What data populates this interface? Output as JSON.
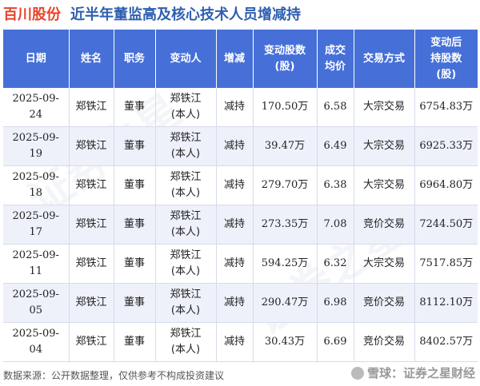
{
  "title": {
    "company": "百川股份",
    "subtitle": "近半年董监高及核心技术人员增减持"
  },
  "table": {
    "headers": [
      "日期",
      "姓名",
      "职务",
      "变动人",
      "增减",
      "变动股数\n(股)",
      "成交\n均价",
      "交易方式",
      "变动后\n持股数\n(股)"
    ],
    "rows": [
      {
        "date": "2025-09-24",
        "name": "郑铁江",
        "role": "董事",
        "actor_name": "郑铁江",
        "actor_note": "(本人)",
        "change": "减持",
        "shares": "170.50万",
        "price": "6.58",
        "method": "大宗交易",
        "after": "6754.83万"
      },
      {
        "date": "2025-09-19",
        "name": "郑铁江",
        "role": "董事",
        "actor_name": "郑铁江",
        "actor_note": "(本人)",
        "change": "减持",
        "shares": "39.47万",
        "price": "6.49",
        "method": "大宗交易",
        "after": "6925.33万"
      },
      {
        "date": "2025-09-18",
        "name": "郑铁江",
        "role": "董事",
        "actor_name": "郑铁江",
        "actor_note": "(本人)",
        "change": "减持",
        "shares": "279.70万",
        "price": "6.38",
        "method": "大宗交易",
        "after": "6964.80万"
      },
      {
        "date": "2025-09-17",
        "name": "郑铁江",
        "role": "董事",
        "actor_name": "郑铁江",
        "actor_note": "(本人)",
        "change": "减持",
        "shares": "273.35万",
        "price": "7.08",
        "method": "竞价交易",
        "after": "7244.50万"
      },
      {
        "date": "2025-09-11",
        "name": "郑铁江",
        "role": "董事",
        "actor_name": "郑铁江",
        "actor_note": "(本人)",
        "change": "减持",
        "shares": "594.25万",
        "price": "6.32",
        "method": "大宗交易",
        "after": "7517.85万"
      },
      {
        "date": "2025-09-05",
        "name": "郑铁江",
        "role": "董事",
        "actor_name": "郑铁江",
        "actor_note": "(本人)",
        "change": "减持",
        "shares": "290.47万",
        "price": "6.98",
        "method": "竞价交易",
        "after": "8112.10万"
      },
      {
        "date": "2025-09-04",
        "name": "郑铁江",
        "role": "董事",
        "actor_name": "郑铁江",
        "actor_note": "(本人)",
        "change": "减持",
        "shares": "30.43万",
        "price": "6.69",
        "method": "竞价交易",
        "after": "8402.57万"
      }
    ]
  },
  "footer": {
    "source": "数据来源：公开数据整理，仅供参考不构成投资建议",
    "watermark": "雪球：证券之星财经"
  },
  "colors": {
    "company": "#e8432a",
    "subtitle": "#2f5fb0",
    "header_bg": "#4670d8",
    "decrease": "#27a644"
  }
}
